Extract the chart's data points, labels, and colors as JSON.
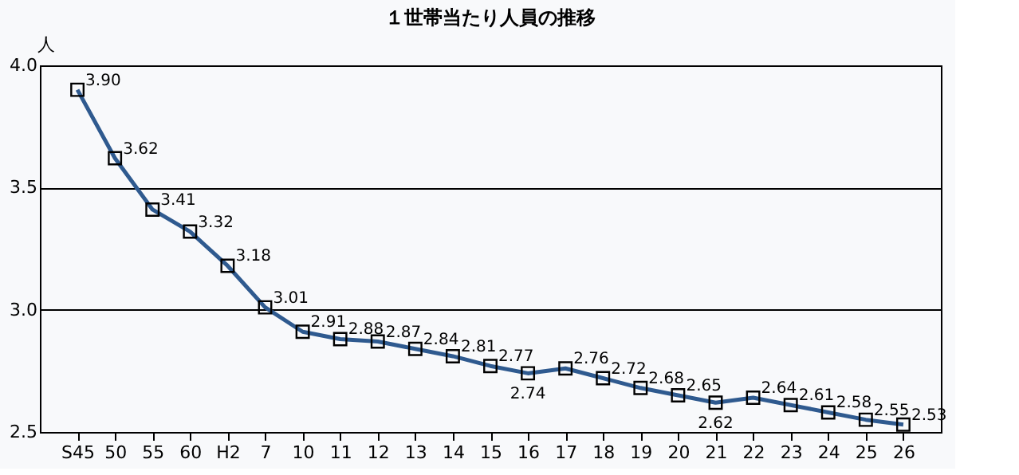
{
  "chart_data": {
    "type": "line",
    "title": "１世帯当たり人員の推移",
    "ylabel": "人",
    "categories": [
      "S45",
      "50",
      "55",
      "60",
      "H2",
      "7",
      "10",
      "11",
      "12",
      "13",
      "14",
      "15",
      "16",
      "17",
      "18",
      "19",
      "20",
      "21",
      "22",
      "23",
      "24",
      "25",
      "26"
    ],
    "series": [
      {
        "color": "#2f5a8f",
        "values": [
          3.9,
          3.62,
          3.41,
          3.32,
          3.18,
          3.01,
          2.91,
          2.88,
          2.87,
          2.84,
          2.81,
          2.77,
          2.74,
          2.76,
          2.72,
          2.68,
          2.65,
          2.62,
          2.64,
          2.61,
          2.58,
          2.55,
          2.53
        ]
      }
    ],
    "ylim": [
      2.5,
      4.0
    ],
    "yticks": [
      {
        "value": 2.5,
        "label": "2.5"
      },
      {
        "value": 3.0,
        "label": "3.0"
      },
      {
        "value": 3.5,
        "label": "3.5"
      },
      {
        "value": 4.0,
        "label": "4.0"
      }
    ],
    "grid": "y",
    "marker": "square",
    "line_style": "solid",
    "value_labels": [
      "3.90",
      "3.62",
      "3.41",
      "3.32",
      "3.18",
      "3.01",
      "2.91",
      "2.88",
      "2.87",
      "2.84",
      "2.81",
      "2.77",
      "2.74",
      "2.76",
      "2.72",
      "2.68",
      "2.65",
      "2.62",
      "2.64",
      "2.61",
      "2.58",
      "2.55",
      "2.53"
    ]
  }
}
